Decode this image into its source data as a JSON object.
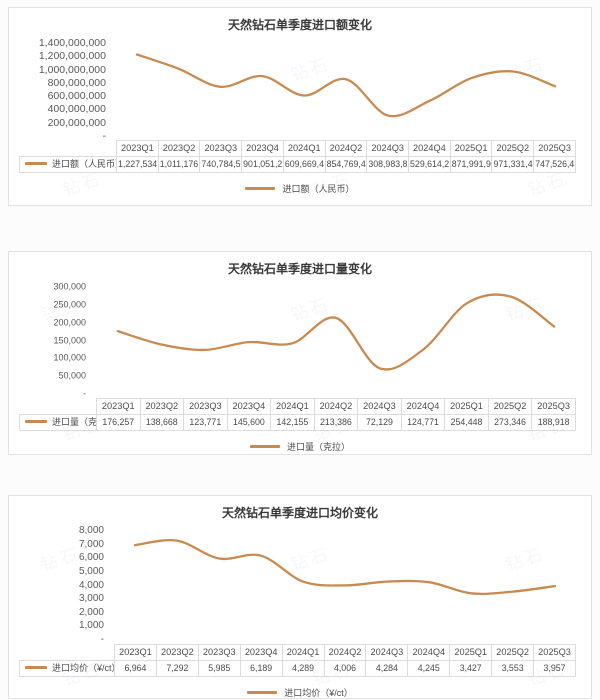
{
  "watermark_text": "钻石",
  "colors": {
    "line": "#C98A4F",
    "card_border": "#e3e3e3",
    "axis_text": "#595959"
  },
  "chart_data": [
    {
      "type": "line",
      "title": "天然钻石单季度进口额变化",
      "series_name": "进口额（人民币）",
      "legend_label": "进口额（人民币）",
      "legend_position": "bottom",
      "grid": false,
      "xlabel": "",
      "ylabel": "",
      "categories": [
        "2023Q1",
        "2023Q2",
        "2023Q3",
        "2023Q4",
        "2024Q1",
        "2024Q2",
        "2024Q3",
        "2024Q4",
        "2025Q1",
        "2025Q2",
        "2025Q3"
      ],
      "values": [
        1227534000,
        1011176000,
        740784500,
        901051200,
        609669400,
        854769400,
        308983800,
        529614200,
        871991900,
        971331400,
        747526400
      ],
      "values_display": [
        "1,227,534,",
        "1,011,176,",
        "740,784,5",
        "901,051,2",
        "609,669,4",
        "854,769,4",
        "308,983,8",
        "529,614,2",
        "871,991,9",
        "971,331,4",
        "747,526,4"
      ],
      "ylim": [
        0,
        1400000000
      ],
      "y_ticks": [
        "1,400,000,000",
        "1,200,000,000",
        "1,000,000,000",
        "800,000,000",
        "600,000,000",
        "400,000,000",
        "200,000,000",
        "-"
      ]
    },
    {
      "type": "line",
      "title": "天然钻石单季度进口量变化",
      "series_name": "进口量（克拉）",
      "legend_label": "进口量（克拉）",
      "legend_position": "bottom",
      "grid": false,
      "xlabel": "",
      "ylabel": "",
      "categories": [
        "2023Q1",
        "2023Q2",
        "2023Q3",
        "2023Q4",
        "2024Q1",
        "2024Q2",
        "2024Q3",
        "2024Q4",
        "2025Q1",
        "2025Q2",
        "2025Q3"
      ],
      "values": [
        176257,
        138668,
        123771,
        145600,
        142155,
        213386,
        72129,
        124771,
        254448,
        273346,
        188918
      ],
      "values_display": [
        "176,257",
        "138,668",
        "123,771",
        "145,600",
        "142,155",
        "213,386",
        "72,129",
        "124,771",
        "254,448",
        "273,346",
        "188,918"
      ],
      "ylim": [
        0,
        300000
      ],
      "y_ticks": [
        "300,000",
        "250,000",
        "200,000",
        "150,000",
        "100,000",
        "50,000",
        "-"
      ]
    },
    {
      "type": "line",
      "title": "天然钻石单季度进口均价变化",
      "series_name": "进口均价（¥/ct）",
      "legend_label": "进口均价（¥/ct）",
      "legend_position": "bottom",
      "grid": false,
      "xlabel": "",
      "ylabel": "",
      "categories": [
        "2023Q1",
        "2023Q2",
        "2023Q3",
        "2023Q4",
        "2024Q1",
        "2024Q2",
        "2024Q3",
        "2024Q4",
        "2025Q1",
        "2025Q2",
        "2025Q3"
      ],
      "values": [
        6964,
        7292,
        5985,
        6189,
        4289,
        4006,
        4284,
        4245,
        3427,
        3553,
        3957
      ],
      "values_display": [
        "6,964",
        "7,292",
        "5,985",
        "6,189",
        "4,289",
        "4,006",
        "4,284",
        "4,245",
        "3,427",
        "3,553",
        "3,957"
      ],
      "ylim": [
        0,
        8000
      ],
      "y_ticks": [
        "8,000",
        "7,000",
        "6,000",
        "5,000",
        "4,000",
        "3,000",
        "2,000",
        "1,000",
        "-"
      ]
    }
  ]
}
